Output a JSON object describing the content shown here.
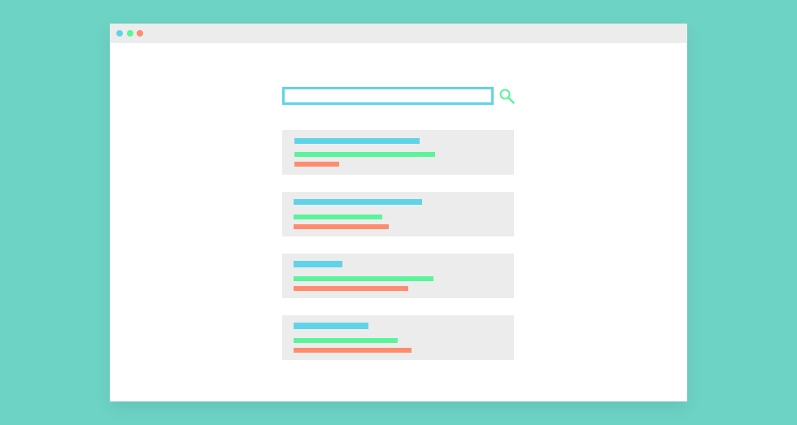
{
  "colors": {
    "background": "#6dd3c5",
    "window": "#ffffff",
    "titlebar": "#ececec",
    "card": "#ececec",
    "blue": "#5fd4e8",
    "green": "#58f59a",
    "red": "#ff8c6e"
  },
  "window_controls": [
    {
      "name": "blue-dot",
      "color": "#5fd4e8"
    },
    {
      "name": "green-dot",
      "color": "#58f59a"
    },
    {
      "name": "red-dot",
      "color": "#ff8c6e"
    }
  ],
  "search": {
    "value": "",
    "placeholder": "",
    "icon": "search-icon"
  },
  "results_count": 4
}
